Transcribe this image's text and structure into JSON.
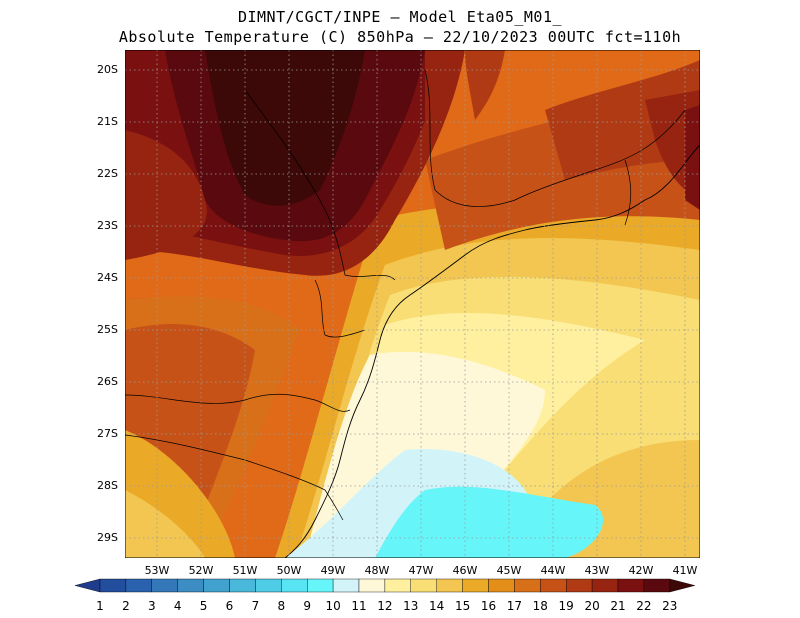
{
  "header": {
    "line1": "DIMNT/CGCT/INPE –  Model Eta05_M01_",
    "line2": "Absolute Temperature (C) 850hPa –  22/10/2023 00UTC fct=110h"
  },
  "map": {
    "lat_labels": [
      "20S",
      "21S",
      "22S",
      "23S",
      "24S",
      "25S",
      "26S",
      "27S",
      "28S",
      "29S"
    ],
    "lon_labels": [
      "53W",
      "52W",
      "51W",
      "50W",
      "49W",
      "48W",
      "47W",
      "46W",
      "45W",
      "44W",
      "43W",
      "42W",
      "41W"
    ],
    "grid": true
  },
  "colorbar": {
    "values": [
      "1",
      "2",
      "3",
      "4",
      "5",
      "6",
      "7",
      "8",
      "9",
      "10",
      "11",
      "12",
      "13",
      "14",
      "15",
      "16",
      "17",
      "18",
      "19",
      "20",
      "21",
      "22",
      "23"
    ],
    "colors": [
      "#1f3d8c",
      "#234e9e",
      "#2b62b0",
      "#3478ba",
      "#3b8dc4",
      "#42a2cf",
      "#4ab8da",
      "#50cde6",
      "#58e4f2",
      "#66f5f8",
      "#d2f4f8",
      "#fff8d8",
      "#fff0a0",
      "#f8de74",
      "#f2c650",
      "#eaaa28",
      "#e48e1a",
      "#d8701a",
      "#c65218",
      "#b03a14",
      "#962410",
      "#7a1010",
      "#5a0a0e",
      "#3c0808"
    ]
  }
}
